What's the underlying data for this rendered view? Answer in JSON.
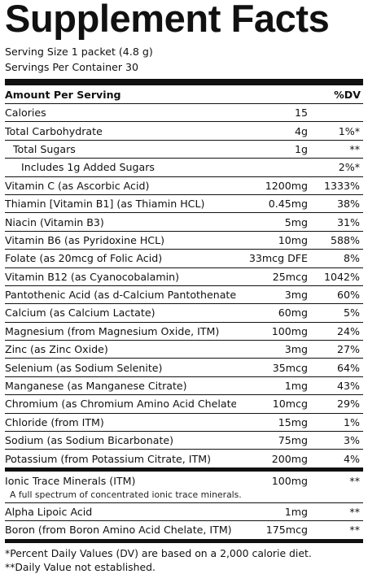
{
  "title": "Supplement Facts",
  "serving_size": "Serving Size 1 packet (4.8 g)",
  "servings_per_container": "Servings Per Container 30",
  "header": {
    "amount": "Amount Per Serving",
    "dv": "%DV"
  },
  "nutrients": [
    {
      "name": "Calories",
      "amount": "15",
      "dv": "",
      "indent": 0
    },
    {
      "name": "Total Carbohydrate",
      "amount": "4g",
      "dv": "1%*",
      "indent": 0
    },
    {
      "name": "Total Sugars",
      "amount": "1g",
      "dv": "**",
      "indent": 1
    },
    {
      "name": "Includes 1g Added Sugars",
      "amount": "",
      "dv": "2%*",
      "indent": 2
    },
    {
      "name": "Vitamin C (as Ascorbic Acid)",
      "amount": "1200mg",
      "dv": "1333%",
      "indent": 0
    },
    {
      "name": "Thiamin [Vitamin B1] (as Thiamin HCL)",
      "amount": "0.45mg",
      "dv": "38%",
      "indent": 0
    },
    {
      "name": "Niacin (Vitamin B3)",
      "amount": "5mg",
      "dv": "31%",
      "indent": 0
    },
    {
      "name": "Vitamin B6 (as Pyridoxine HCL)",
      "amount": "10mg",
      "dv": "588%",
      "indent": 0
    },
    {
      "name": "Folate (as 20mcg of Folic Acid)",
      "amount": "33mcg DFE",
      "dv": "8%",
      "indent": 0
    },
    {
      "name": "Vitamin B12 (as Cyanocobalamin)",
      "amount": "25mcg",
      "dv": "1042%",
      "indent": 0
    },
    {
      "name": "Pantothenic Acid (as d-Calcium Pantothenate)",
      "amount": "3mg",
      "dv": "60%",
      "indent": 0
    },
    {
      "name": "Calcium (as Calcium Lactate)",
      "amount": "60mg",
      "dv": "5%",
      "indent": 0
    },
    {
      "name": "Magnesium (from Magnesium Oxide, ITM)",
      "amount": "100mg",
      "dv": "24%",
      "indent": 0
    },
    {
      "name": "Zinc (as Zinc Oxide)",
      "amount": "3mg",
      "dv": "27%",
      "indent": 0
    },
    {
      "name": "Selenium (as Sodium Selenite)",
      "amount": "35mcg",
      "dv": "64%",
      "indent": 0
    },
    {
      "name": "Manganese (as Manganese Citrate)",
      "amount": "1mg",
      "dv": "43%",
      "indent": 0
    },
    {
      "name": "Chromium (as Chromium Amino Acid Chelate)",
      "amount": "10mcg",
      "dv": "29%",
      "indent": 0
    },
    {
      "name": "Chloride (from ITM)",
      "amount": "15mg",
      "dv": "1%",
      "indent": 0
    },
    {
      "name": "Sodium (as Sodium Bicarbonate)",
      "amount": "75mg",
      "dv": "3%",
      "indent": 0
    },
    {
      "name": "Potassium (from Potassium Citrate, ITM)",
      "amount": "200mg",
      "dv": "4%",
      "indent": 0
    }
  ],
  "other": [
    {
      "name": "Ionic Trace Minerals (ITM)",
      "amount": "100mg",
      "dv": "**",
      "note": "A full spectrum of concentrated ionic trace minerals."
    },
    {
      "name": "Alpha Lipoic Acid",
      "amount": "1mg",
      "dv": "**",
      "note": ""
    },
    {
      "name": "Boron (from Boron Amino Acid Chelate, ITM)",
      "amount": "175mcg",
      "dv": "**",
      "note": ""
    }
  ],
  "footnotes": [
    "*Percent Daily Values (DV) are based on a 2,000 calorie diet.",
    "**Daily Value not established."
  ]
}
